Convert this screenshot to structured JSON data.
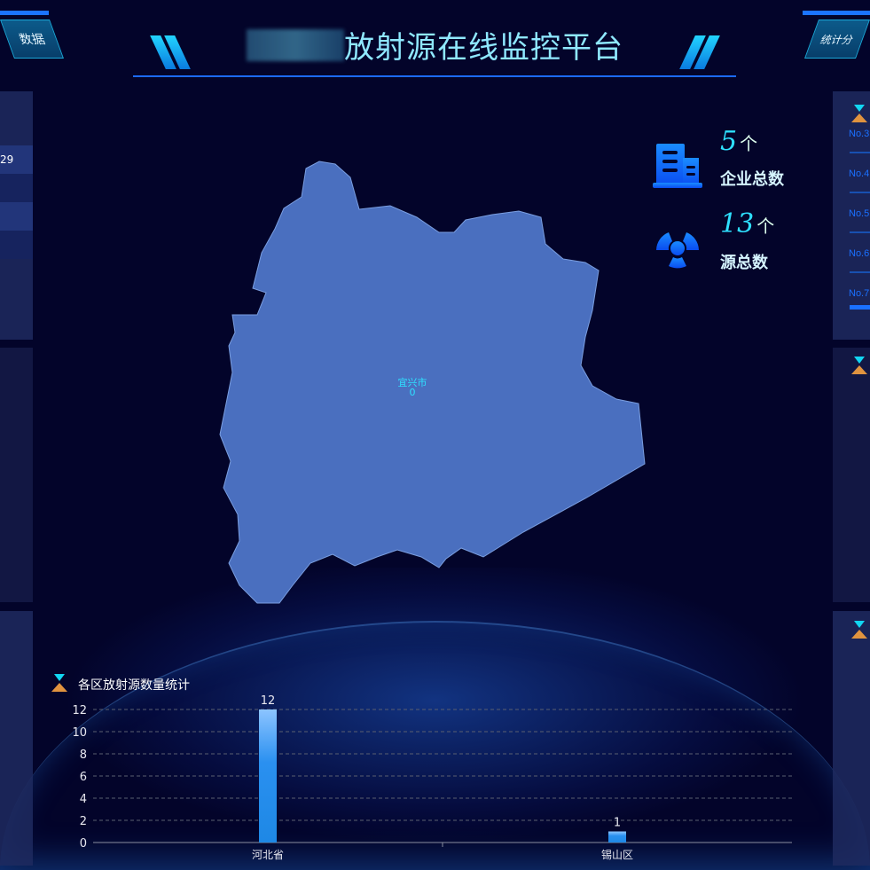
{
  "header": {
    "title": "放射源在线监控平台",
    "left_tab": "数据",
    "right_tab": "统计分"
  },
  "left_panel": {
    "row_value": "29"
  },
  "right_panel": {
    "ranks": [
      "No.3",
      "No.4",
      "No.5",
      "No.6",
      "No.7"
    ]
  },
  "stats": [
    {
      "icon": "building-icon",
      "value": "5",
      "unit": "个",
      "label": "企业总数"
    },
    {
      "icon": "radiation-icon",
      "value": "13",
      "unit": "个",
      "label": "源总数"
    }
  ],
  "map": {
    "region_name": "宜兴市",
    "region_value": "0",
    "fill": "#4a6fbf"
  },
  "colors": {
    "accent": "#1b74ff",
    "cyan": "#2ee0ff",
    "bar": "#1e88e5"
  },
  "chart_data": {
    "type": "bar",
    "title": "各区放射源数量统计",
    "categories": [
      "河北省",
      "锡山区"
    ],
    "values": [
      12,
      1
    ],
    "ylim": [
      0,
      12
    ],
    "yticks": [
      0,
      2,
      4,
      6,
      8,
      10,
      12
    ],
    "grid": true
  }
}
